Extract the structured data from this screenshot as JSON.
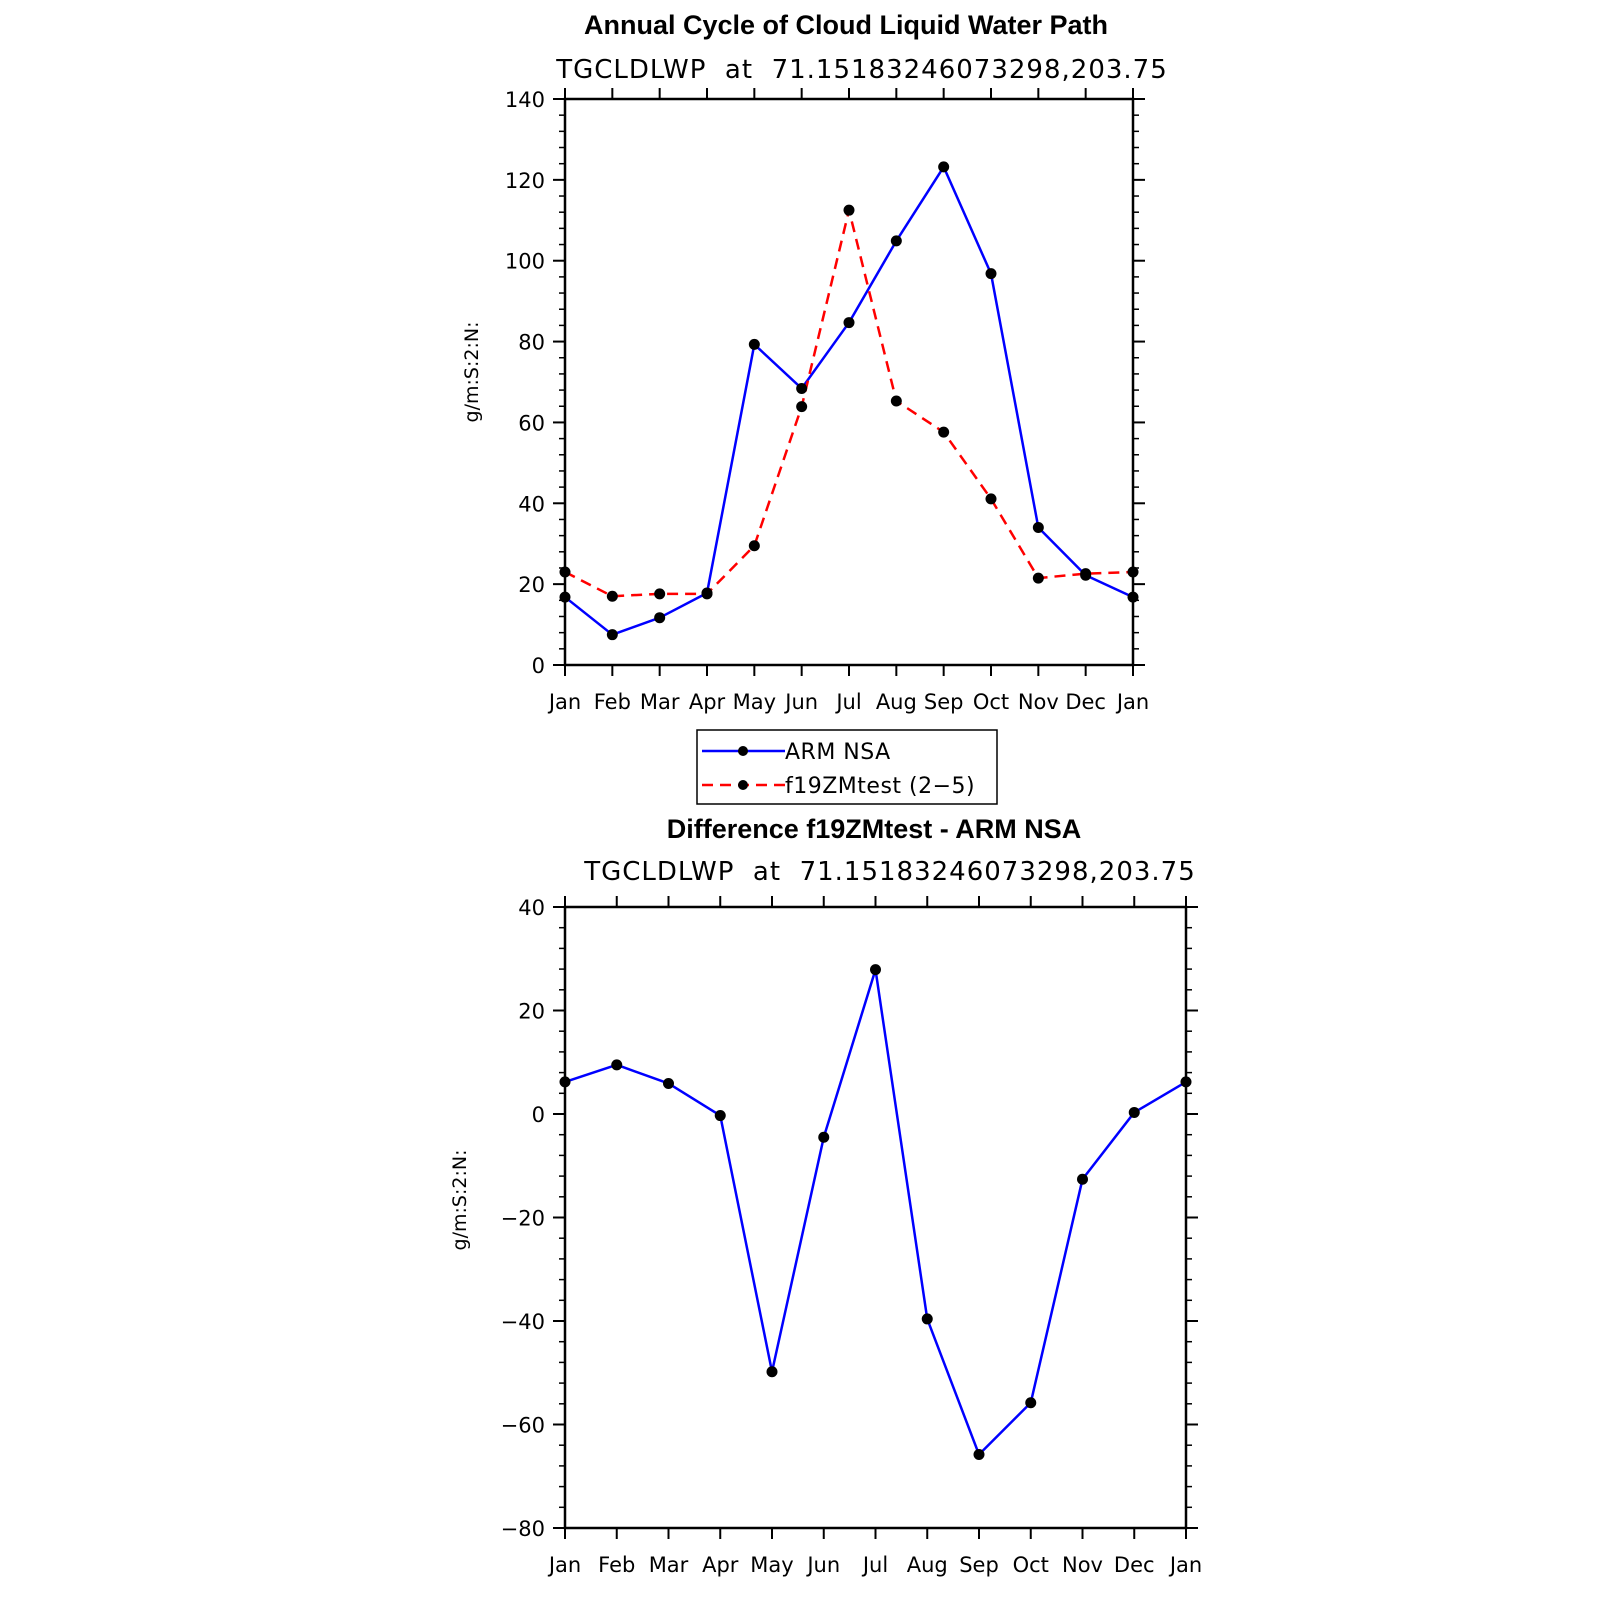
{
  "chart_data": [
    {
      "type": "line",
      "title": "Annual Cycle of Cloud Liquid Water Path",
      "subtitle": "TGCLDLWP  at  71.15183246073298,203.75",
      "ylabel": "g/m:S:2:N:",
      "xlabel": "",
      "categories": [
        "Jan",
        "Feb",
        "Mar",
        "Apr",
        "May",
        "Jun",
        "Jul",
        "Aug",
        "Sep",
        "Oct",
        "Nov",
        "Dec",
        "Jan"
      ],
      "ylim": [
        0,
        140
      ],
      "yticks": [
        0,
        20,
        40,
        60,
        80,
        100,
        120,
        140
      ],
      "ytick_labels": [
        "0",
        "20",
        "40",
        "60",
        "80",
        "100",
        "120",
        "140"
      ],
      "series": [
        {
          "name": "ARM NSA",
          "color": "#0000ff",
          "dash": "solid",
          "marker": "dot",
          "values": [
            16.8,
            7.5,
            11.7,
            17.8,
            79.3,
            68.4,
            84.7,
            104.9,
            123.2,
            96.8,
            34.0,
            22.2,
            16.8
          ]
        },
        {
          "name": "f19ZMtest (2-5)",
          "color": "#ff0000",
          "dash": "dashed",
          "marker": "dot",
          "values": [
            23.0,
            17.0,
            17.6,
            17.6,
            29.5,
            63.9,
            112.5,
            65.3,
            57.6,
            41.1,
            21.5,
            22.6,
            23.0
          ]
        }
      ],
      "legend": {
        "placement": "bottom",
        "entries": [
          "ARM NSA",
          "f19ZMtest (2−5)"
        ]
      }
    },
    {
      "type": "line",
      "title": "Difference f19ZMtest - ARM NSA",
      "subtitle": "TGCLDLWP  at  71.15183246073298,203.75",
      "ylabel": "g/m:S:2:N:",
      "xlabel": "",
      "categories": [
        "Jan",
        "Feb",
        "Mar",
        "Apr",
        "May",
        "Jun",
        "Jul",
        "Aug",
        "Sep",
        "Oct",
        "Nov",
        "Dec",
        "Jan"
      ],
      "ylim": [
        -80,
        40
      ],
      "yticks": [
        -80,
        -60,
        -40,
        -20,
        0,
        20,
        40
      ],
      "ytick_labels": [
        "−80",
        "−60",
        "−40",
        "−20",
        "0",
        "20",
        "40"
      ],
      "series": [
        {
          "name": "",
          "color": "#0000ff",
          "dash": "solid",
          "marker": "dot",
          "values": [
            6.2,
            9.5,
            5.9,
            -0.3,
            -49.8,
            -4.5,
            27.9,
            -39.6,
            -65.8,
            -55.8,
            -12.6,
            0.3,
            6.2
          ]
        }
      ]
    }
  ]
}
